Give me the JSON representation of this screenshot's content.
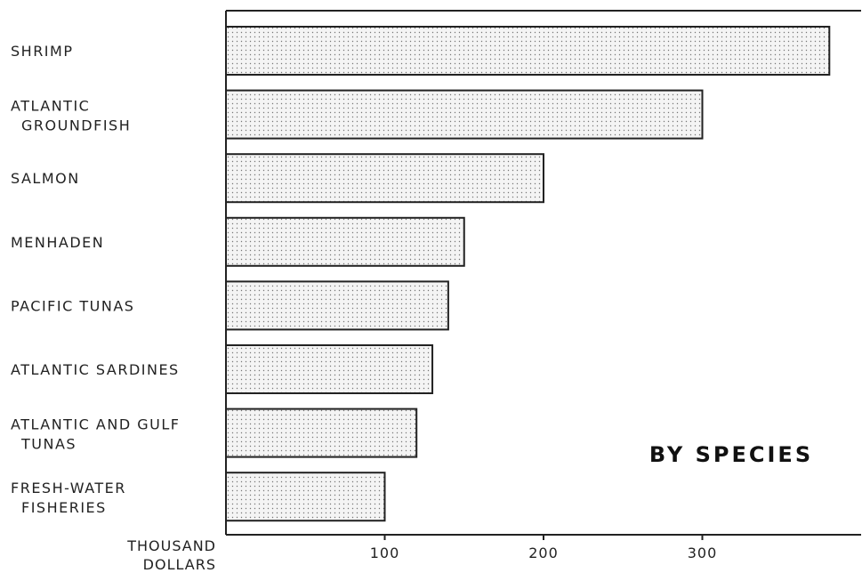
{
  "chart_data": {
    "type": "bar",
    "orientation": "horizontal",
    "categories": [
      [
        "SHRIMP"
      ],
      [
        "ATLANTIC",
        "GROUNDFISH"
      ],
      [
        "SALMON"
      ],
      [
        "MENHADEN"
      ],
      [
        "PACIFIC TUNAS"
      ],
      [
        "ATLANTIC SARDINES"
      ],
      [
        "ATLANTIC AND GULF",
        "TUNAS"
      ],
      [
        "FRESH-WATER",
        "FISHERIES"
      ]
    ],
    "values": [
      380,
      300,
      200,
      150,
      140,
      130,
      120,
      100
    ],
    "xticks": [
      100,
      200,
      300
    ],
    "xlim": [
      0,
      400
    ],
    "unit_label": [
      "THOUSAND",
      "DOLLARS"
    ],
    "annotation": "BY SPECIES",
    "grid": false,
    "bar_fill": "#f3f3f3",
    "bar_stroke": "#222222"
  }
}
